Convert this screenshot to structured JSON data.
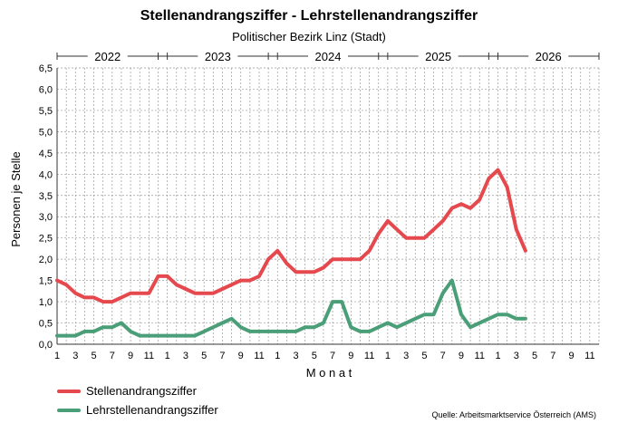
{
  "chart_data": {
    "type": "line",
    "title": "Stellenandrangsziffer - Lehrstellenandrangsziffer",
    "subtitle": "Politischer Bezirk Linz (Stadt)",
    "xlabel": "M o n a t",
    "ylabel": "Personen je Stelle",
    "ylim": [
      0,
      6.5
    ],
    "yticks": [
      "0,0",
      "0,5",
      "1,0",
      "1,5",
      "2,0",
      "2,5",
      "3,0",
      "3,5",
      "4,0",
      "4,5",
      "5,0",
      "5,5",
      "6,0",
      "6,5"
    ],
    "year_labels": [
      "2022",
      "2023",
      "2024",
      "2025",
      "2026"
    ],
    "month_tick_labels": [
      "1",
      "3",
      "5",
      "7",
      "9",
      "11",
      "1",
      "3",
      "5",
      "7",
      "9",
      "11",
      "1",
      "3",
      "5",
      "7",
      "9",
      "11",
      "1",
      "3",
      "5",
      "7",
      "9",
      "11",
      "1",
      "3",
      "5",
      "7",
      "9",
      "11"
    ],
    "grid": true,
    "legend_position": "bottom-left",
    "series": [
      {
        "name": "Stellenandrangsziffer",
        "color": "#e5484d",
        "values": [
          1.5,
          1.4,
          1.2,
          1.1,
          1.1,
          1.0,
          1.0,
          1.1,
          1.2,
          1.2,
          1.2,
          1.6,
          1.6,
          1.4,
          1.3,
          1.2,
          1.2,
          1.2,
          1.3,
          1.4,
          1.5,
          1.5,
          1.6,
          2.0,
          2.2,
          1.9,
          1.7,
          1.7,
          1.7,
          1.8,
          2.0,
          2.0,
          2.0,
          2.0,
          2.2,
          2.6,
          2.9,
          2.7,
          2.5,
          2.5,
          2.5,
          2.7,
          2.9,
          3.2,
          3.3,
          3.2,
          3.4,
          3.9,
          4.1,
          3.7,
          2.7,
          2.2
        ]
      },
      {
        "name": "Lehrstellenandrangsziffer",
        "color": "#4a9e78",
        "values": [
          0.2,
          0.2,
          0.2,
          0.3,
          0.3,
          0.4,
          0.4,
          0.5,
          0.3,
          0.2,
          0.2,
          0.2,
          0.2,
          0.2,
          0.2,
          0.2,
          0.3,
          0.4,
          0.5,
          0.6,
          0.4,
          0.3,
          0.3,
          0.3,
          0.3,
          0.3,
          0.3,
          0.4,
          0.4,
          0.5,
          1.0,
          1.0,
          0.4,
          0.3,
          0.3,
          0.4,
          0.5,
          0.4,
          0.5,
          0.6,
          0.7,
          0.7,
          1.2,
          1.5,
          0.7,
          0.4,
          0.5,
          0.6,
          0.7,
          0.7,
          0.6,
          0.6
        ]
      }
    ],
    "source": "Quelle: Arbeitsmarktservice Österreich (AMS)"
  }
}
